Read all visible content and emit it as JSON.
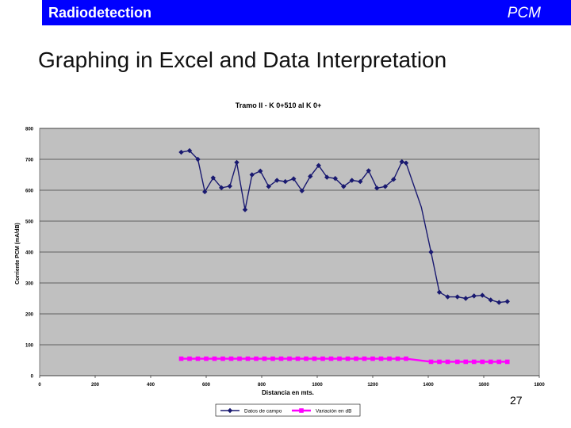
{
  "header": {
    "left_title": "Radiodetection",
    "right_title": "PCM"
  },
  "slide": {
    "title": "Graphing in Excel and Data Interpretation",
    "page_number": "27"
  },
  "colors": {
    "banner": "#0000ff",
    "plot_bg": "#c0c0c0",
    "series_field": "#191970",
    "series_db": "#ff00ff"
  },
  "chart_data": {
    "type": "line",
    "title": "Tramo II - K 0+510  al  K 0+",
    "xlabel": "Distancia en mts.",
    "ylabel": "Corriente PCM  (mA/dB)",
    "xlim": [
      0,
      1800
    ],
    "ylim": [
      0,
      800
    ],
    "xticks": [
      0,
      200,
      400,
      600,
      800,
      1000,
      1200,
      1400,
      1600,
      1800
    ],
    "yticks": [
      0,
      100,
      200,
      300,
      400,
      500,
      600,
      700,
      800
    ],
    "grid": true,
    "legend": "bottom",
    "series": [
      {
        "name": "Datos de campo",
        "markers_until": 1320,
        "points": [
          [
            510,
            723
          ],
          [
            540,
            728
          ],
          [
            570,
            700
          ],
          [
            595,
            595
          ],
          [
            625,
            640
          ],
          [
            655,
            608
          ],
          [
            685,
            613
          ],
          [
            710,
            690
          ],
          [
            740,
            537
          ],
          [
            765,
            650
          ],
          [
            795,
            662
          ],
          [
            825,
            612
          ],
          [
            855,
            632
          ],
          [
            885,
            628
          ],
          [
            915,
            637
          ],
          [
            945,
            598
          ],
          [
            975,
            645
          ],
          [
            1005,
            680
          ],
          [
            1035,
            642
          ],
          [
            1065,
            638
          ],
          [
            1095,
            612
          ],
          [
            1125,
            632
          ],
          [
            1155,
            628
          ],
          [
            1185,
            663
          ],
          [
            1215,
            607
          ],
          [
            1245,
            612
          ],
          [
            1275,
            635
          ],
          [
            1305,
            692
          ],
          [
            1320,
            688
          ],
          [
            1375,
            545
          ],
          [
            1410,
            400
          ],
          [
            1440,
            270
          ],
          [
            1470,
            255
          ],
          [
            1505,
            255
          ],
          [
            1535,
            250
          ],
          [
            1565,
            258
          ],
          [
            1595,
            260
          ],
          [
            1625,
            245
          ],
          [
            1655,
            237
          ],
          [
            1685,
            240
          ]
        ]
      },
      {
        "name": "Variación en dB",
        "markers_until": 1320,
        "points": [
          [
            510,
            55
          ],
          [
            540,
            55
          ],
          [
            570,
            55
          ],
          [
            600,
            55
          ],
          [
            630,
            55
          ],
          [
            660,
            55
          ],
          [
            690,
            55
          ],
          [
            720,
            55
          ],
          [
            750,
            55
          ],
          [
            780,
            55
          ],
          [
            810,
            55
          ],
          [
            840,
            55
          ],
          [
            870,
            55
          ],
          [
            900,
            55
          ],
          [
            930,
            55
          ],
          [
            960,
            55
          ],
          [
            990,
            55
          ],
          [
            1020,
            55
          ],
          [
            1050,
            55
          ],
          [
            1080,
            55
          ],
          [
            1110,
            55
          ],
          [
            1140,
            55
          ],
          [
            1170,
            55
          ],
          [
            1200,
            55
          ],
          [
            1230,
            55
          ],
          [
            1260,
            55
          ],
          [
            1290,
            55
          ],
          [
            1320,
            55
          ],
          [
            1410,
            45
          ],
          [
            1440,
            45
          ],
          [
            1470,
            45
          ],
          [
            1505,
            45
          ],
          [
            1535,
            45
          ],
          [
            1565,
            45
          ],
          [
            1595,
            45
          ],
          [
            1625,
            45
          ],
          [
            1655,
            45
          ],
          [
            1685,
            45
          ]
        ]
      }
    ]
  }
}
